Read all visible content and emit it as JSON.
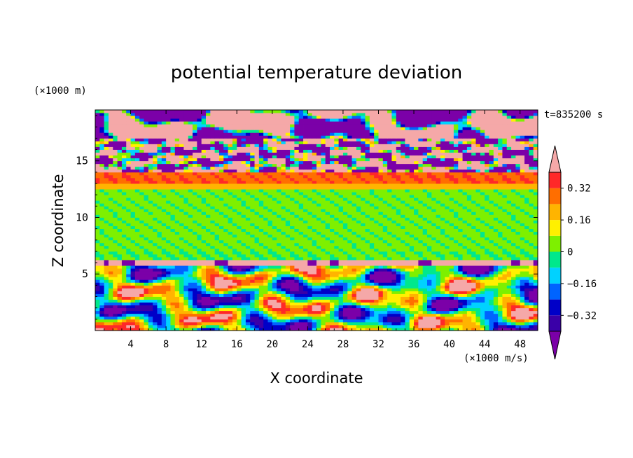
{
  "chart_data": {
    "type": "heatmap",
    "title": "potential temperature deviation",
    "xlabel": "X coordinate",
    "ylabel": "Z coordinate",
    "x_unit": "(×1000 m/s)",
    "y_unit": "(×1000 m)",
    "time_label": "t=835200 s",
    "xlim": [
      0,
      50
    ],
    "ylim": [
      0,
      19.5
    ],
    "x_ticks": [
      4,
      8,
      12,
      16,
      20,
      24,
      28,
      32,
      36,
      40,
      44,
      48
    ],
    "y_ticks": [
      5,
      10,
      15
    ],
    "x_tick_labels": [
      "4",
      "8",
      "12",
      "16",
      "20",
      "24",
      "28",
      "32",
      "36",
      "40",
      "44",
      "48"
    ],
    "y_tick_labels": [
      "5",
      "10",
      "15"
    ],
    "colorbar": {
      "levels": [
        -0.4,
        -0.32,
        -0.24,
        -0.16,
        -0.08,
        0,
        0.08,
        0.16,
        0.24,
        0.32,
        0.4
      ],
      "tick_labels": [
        "0.32",
        "0.16",
        "0",
        "−0.16",
        "−0.32"
      ],
      "tick_values": [
        0.32,
        0.16,
        0,
        -0.16,
        -0.32
      ],
      "colors": [
        "#7b00a8",
        "#3a00a8",
        "#0000c8",
        "#0064ff",
        "#00d2ff",
        "#00e88c",
        "#7ef000",
        "#fff000",
        "#ffb400",
        "#ff6e00",
        "#ff2828",
        "#f5a8a8"
      ],
      "extend": "both"
    },
    "layers": [
      {
        "z_range": [
          17,
          19.5
        ],
        "pattern": "mixed",
        "values": "pink (>0.4) and purple (<-0.4) blobs"
      },
      {
        "z_range": [
          14,
          17
        ],
        "pattern": "mixed",
        "values": "noisy strong positive / negative"
      },
      {
        "z_range": [
          13,
          14
        ],
        "value": 0.3
      },
      {
        "z_range": [
          12.5,
          13
        ],
        "value": 0.2
      },
      {
        "z_range": [
          7,
          12.5
        ],
        "value": 0.03
      },
      {
        "z_range": [
          6.3,
          7
        ],
        "value": 0.01
      },
      {
        "z_range": [
          5.8,
          6.3
        ],
        "pattern": "mixed",
        "values": "pink (>0.4) with purple bumps"
      },
      {
        "z_range": [
          0,
          5.8
        ],
        "pattern": "turbulent",
        "values": "full range -0.4 to 0.4"
      }
    ]
  }
}
